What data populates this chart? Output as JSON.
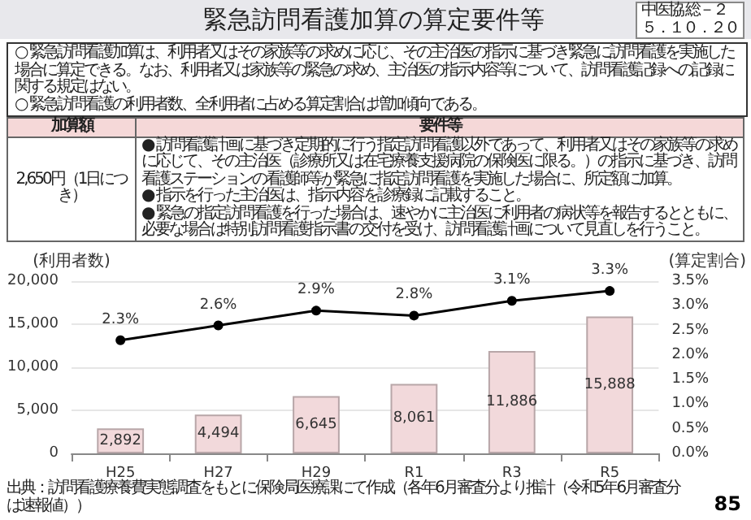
{
  "chart_data": {
    "type": "bar",
    "title": "緊急訪問看護加算の算定要件等",
    "annotations": [
      "中医協 総－２",
      "５．１０．２０",
      "○ 緊急訪問看護加算は、利用者又はその家族等の求めに応じ、その主治医の指示に基づき緊急に訪問看護を実施した場合に算定できる。なお、利用者又は家族等の緊急の求め、主治医の指示内容等について、訪問看護記録への記録に関する規定はない。",
      "○ 緊急訪問看護の利用者数、全利用者に占める算定割合は増加傾向である。",
      "加算額",
      "要件等",
      "2,650円（1日につき）",
      "● 訪問看護計画に基づき定期的に行う指定訪問看護以外であって、利用者又はその家族等の求めに応じて、その主治医（診療所又は在宅療養支援病院の保険医に限る。）の指示に基づき、訪問看護ステーションの看護師等が緊急に指定訪問看護を実施した場合に、所定額に加算。",
      "● 指示を行った主治医は、指示内容を診療録に記載すること。",
      "● 緊急の指定訪問看護を行った場合は、速やかに主治医に利用者の病状等を報告するとともに、必要な場合は特別訪問看護指示書の交付を受け、訪問看護計画について見直しを行うこと。",
      "出典：訪問看護療養費実態調査をもとに保険局医療課にて作成（各年6月審査分より推計（令和5年6月審査分は速報値））",
      "85"
    ],
    "ylabel": "(利用者数)",
    "y2label": "(算定割合)",
    "categories": [
      "H25",
      "H27",
      "H29",
      "R1",
      "R3",
      "R5"
    ],
    "series": [
      {
        "color": "#f2d9db",
        "values": [
          2892,
          4494,
          6645,
          8061,
          11886,
          15888
        ],
        "value_labels": [
          "2,892",
          "4,494",
          "6,645",
          "8,061",
          "11,886",
          "15,888"
        ]
      },
      {
        "type": "line",
        "axis": "y2",
        "color": "#000000",
        "values": [
          2.3,
          2.6,
          2.9,
          2.8,
          3.1,
          3.3
        ],
        "value_labels": [
          "2.3%",
          "2.6%",
          "2.9%",
          "2.8%",
          "3.1%",
          "3.3%"
        ]
      }
    ],
    "ylim": [
      0,
      20000
    ],
    "yticks": [
      {
        "value": 0,
        "label": "0"
      },
      {
        "value": 5000,
        "label": "5,000"
      },
      {
        "value": 10000,
        "label": "10,000"
      },
      {
        "value": 15000,
        "label": "15,000"
      },
      {
        "value": 20000,
        "label": "20,000"
      }
    ],
    "y2lim": [
      0,
      3.5
    ],
    "y2ticks": [
      {
        "value": 0,
        "label": "0.0%"
      },
      {
        "value": 0.5,
        "label": "0.5%"
      },
      {
        "value": 1,
        "label": "1.0%"
      },
      {
        "value": 1.5,
        "label": "1.5%"
      },
      {
        "value": 2,
        "label": "2.0%"
      },
      {
        "value": 2.5,
        "label": "2.5%"
      },
      {
        "value": 3,
        "label": "3.0%"
      },
      {
        "value": 3.5,
        "label": "3.5%"
      }
    ],
    "grid": "y",
    "marker": "circle",
    "line_style": "solid"
  }
}
